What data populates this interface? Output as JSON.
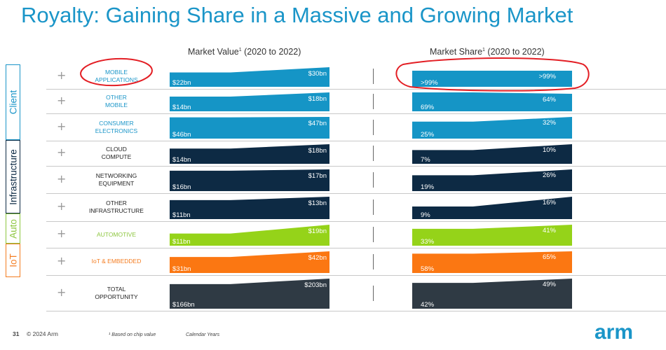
{
  "title": "Royalty: Gaining Share in a Massive and Growing Market",
  "headers": {
    "market_value": "Market Value",
    "market_value_sup": "1",
    "market_value_years": " (2020 to 2022)",
    "market_share": "Market Share",
    "market_share_sup": "1",
    "market_share_years": " (2020 to 2022)"
  },
  "segments": [
    {
      "label": "Client",
      "color": "#1a95c8"
    },
    {
      "label": "Infrastructure",
      "color": "#0d2a44"
    },
    {
      "label": "Auto",
      "color": "#8dc63f"
    },
    {
      "label": "IoT",
      "color": "#f47c20"
    }
  ],
  "colors": {
    "client": "#1595c6",
    "infrastructure": "#0d2a44",
    "auto": "#95d319",
    "iot": "#fb7712",
    "total": "#2f3a44",
    "annotation": "#e31e24"
  },
  "rows": [
    {
      "category": "MOBILE\nAPPLICATIONS",
      "group": "client",
      "value_start": "$22bn",
      "value_end": "$30bn",
      "share_start": ">99%",
      "share_end": ">99%",
      "value_start_num": 22,
      "value_end_num": 30,
      "share_start_num": 99,
      "share_end_num": 99
    },
    {
      "category": "OTHER\nMOBILE",
      "group": "client",
      "value_start": "$14bn",
      "value_end": "$18bn",
      "share_start": "69%",
      "share_end": "64%",
      "value_start_num": 14,
      "value_end_num": 18,
      "share_start_num": 69,
      "share_end_num": 64
    },
    {
      "category": "CONSUMER\nELECTRONICS",
      "group": "client",
      "value_start": "$46bn",
      "value_end": "$47bn",
      "share_start": "25%",
      "share_end": "32%",
      "value_start_num": 46,
      "value_end_num": 47,
      "share_start_num": 25,
      "share_end_num": 32
    },
    {
      "category": "CLOUD\nCOMPUTE",
      "group": "infrastructure",
      "value_start": "$14bn",
      "value_end": "$18bn",
      "share_start": "7%",
      "share_end": "10%",
      "value_start_num": 14,
      "value_end_num": 18,
      "share_start_num": 7,
      "share_end_num": 10
    },
    {
      "category": "NETWORKING\nEQUIPMENT",
      "group": "infrastructure",
      "value_start": "$16bn",
      "value_end": "$17bn",
      "share_start": "19%",
      "share_end": "26%",
      "value_start_num": 16,
      "value_end_num": 17,
      "share_start_num": 19,
      "share_end_num": 26
    },
    {
      "category": "OTHER\nINFRASTRUCTURE",
      "group": "infrastructure",
      "value_start": "$11bn",
      "value_end": "$13bn",
      "share_start": "9%",
      "share_end": "16%",
      "value_start_num": 11,
      "value_end_num": 13,
      "share_start_num": 9,
      "share_end_num": 16
    },
    {
      "category": "AUTOMOTIVE",
      "group": "auto",
      "value_start": "$11bn",
      "value_end": "$19bn",
      "share_start": "33%",
      "share_end": "41%",
      "value_start_num": 11,
      "value_end_num": 19,
      "share_start_num": 33,
      "share_end_num": 41
    },
    {
      "category": "IoT & EMBEDDED",
      "group": "iot",
      "value_start": "$31bn",
      "value_end": "$42bn",
      "share_start": "58%",
      "share_end": "65%",
      "value_start_num": 31,
      "value_end_num": 42,
      "share_start_num": 58,
      "share_end_num": 65
    },
    {
      "category": "TOTAL\nOPPORTUNITY",
      "group": "total",
      "value_start": "$166bn",
      "value_end": "$203bn",
      "share_start": "42%",
      "share_end": "49%",
      "value_start_num": 166,
      "value_end_num": 203,
      "share_start_num": 42,
      "share_end_num": 49
    }
  ],
  "footer": {
    "page_number": "31",
    "copyright": "© 2024 Arm",
    "footnote": "¹ Based on chip value",
    "note": "Calendar Years"
  },
  "logo": "arm"
}
